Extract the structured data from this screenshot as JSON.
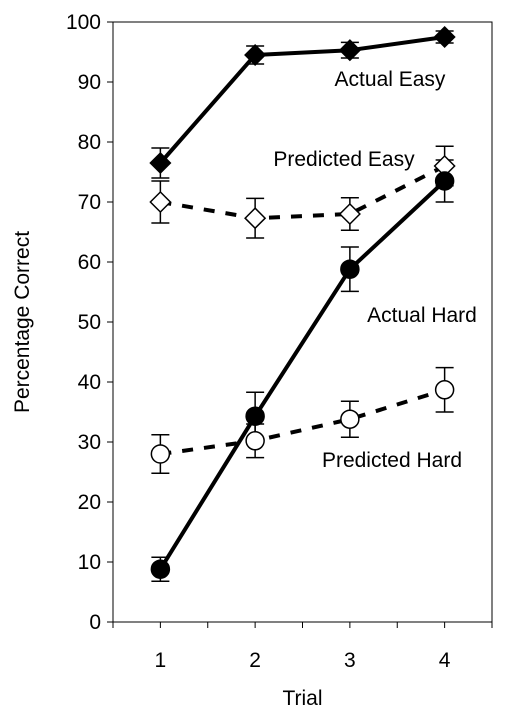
{
  "chart_data": {
    "type": "line",
    "title": "",
    "xlabel": "Trial",
    "ylabel": "Percentage Correct",
    "x": [
      1,
      2,
      3,
      4
    ],
    "xlim": [
      0.5,
      4.5
    ],
    "ylim": [
      0,
      100
    ],
    "yticks": [
      0,
      10,
      20,
      30,
      40,
      50,
      60,
      70,
      80,
      90,
      100
    ],
    "xticks": [
      1,
      2,
      3,
      4
    ],
    "grid": false,
    "legend": "none",
    "series": [
      {
        "name": "Actual Easy",
        "values": [
          76.5,
          94.5,
          95.3,
          97.5
        ],
        "error": [
          2.5,
          1.5,
          1.3,
          1.0
        ],
        "marker": "diamond-filled",
        "line": "solid"
      },
      {
        "name": "Predicted Easy",
        "values": [
          70,
          67.3,
          68,
          76
        ],
        "error": [
          3.5,
          3.3,
          2.7,
          3.3
        ],
        "marker": "diamond-open",
        "line": "dashed"
      },
      {
        "name": "Actual Hard",
        "values": [
          8.8,
          34.3,
          58.8,
          73.5
        ],
        "error": [
          2.0,
          4.0,
          3.7,
          3.5
        ],
        "marker": "circle-filled",
        "line": "solid"
      },
      {
        "name": "Predicted Hard",
        "values": [
          28,
          30.2,
          33.8,
          38.7
        ],
        "error": [
          3.2,
          2.8,
          3.0,
          3.7
        ],
        "marker": "circle-open",
        "line": "dashed"
      }
    ]
  }
}
